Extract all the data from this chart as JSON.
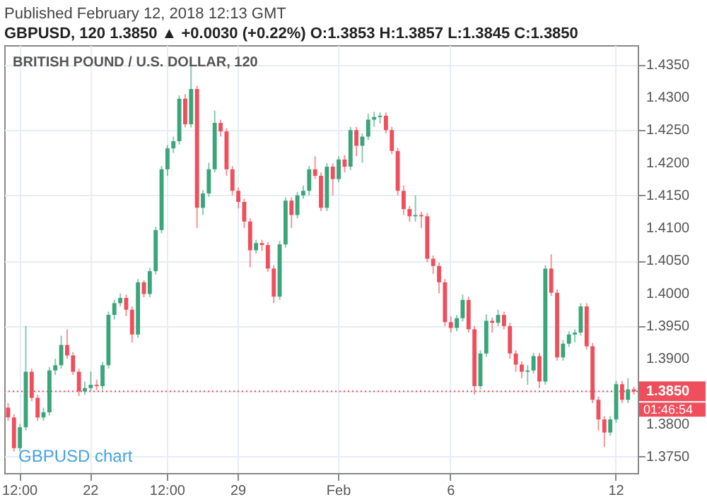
{
  "chart_data": {
    "type": "candlestick",
    "title": "GBPUSD, 120  1.3850 ▲ +0.0030 (+0.22%)  O:1.3853  H:1.3857  L:1.3845  C:1.3850",
    "annotations": [
      "Published February 12, 2018 12:13 GMT",
      "BRITISH POUND / U.S. DOLLAR, 120",
      "GBPUSD chart",
      "01:46:54"
    ],
    "categories": [
      null,
      null,
      "12:00",
      null,
      null,
      null,
      null,
      null,
      null,
      null,
      null,
      null,
      null,
      null,
      "22",
      null,
      null,
      null,
      null,
      null,
      null,
      null,
      null,
      null,
      null,
      null,
      null,
      "12:00",
      null,
      null,
      null,
      null,
      null,
      null,
      null,
      null,
      null,
      null,
      null,
      "29",
      null,
      null,
      null,
      null,
      null,
      null,
      null,
      null,
      null,
      null,
      null,
      null,
      null,
      null,
      null,
      null,
      "Feb",
      null,
      null,
      null,
      null,
      null,
      null,
      null,
      null,
      null,
      null,
      null,
      null,
      null,
      null,
      null,
      null,
      null,
      null,
      "6",
      null,
      null,
      null,
      null,
      null,
      null,
      null,
      null,
      null,
      null,
      null,
      null,
      null,
      null,
      null,
      null,
      null,
      null,
      null,
      null,
      null,
      null,
      null,
      null,
      null,
      null,
      null,
      "12",
      null,
      null,
      null
    ],
    "ohlc": [
      [
        1.3825,
        1.3832,
        1.3805,
        1.381
      ],
      [
        1.381,
        1.3815,
        1.3758,
        1.3763
      ],
      [
        1.3763,
        1.38,
        1.3758,
        1.3795
      ],
      [
        1.3795,
        1.395,
        1.379,
        1.388
      ],
      [
        1.388,
        1.3885,
        1.3835,
        1.384
      ],
      [
        1.384,
        1.3845,
        1.3805,
        1.381
      ],
      [
        1.381,
        1.3825,
        1.3805,
        1.3818
      ],
      [
        1.3818,
        1.3887,
        1.3813,
        1.3882
      ],
      [
        1.3882,
        1.39,
        1.3875,
        1.389
      ],
      [
        1.389,
        1.3935,
        1.3885,
        1.3921
      ],
      [
        1.3921,
        1.3945,
        1.39,
        1.3905
      ],
      [
        1.3905,
        1.391,
        1.3875,
        1.388
      ],
      [
        1.388,
        1.3885,
        1.3843,
        1.385
      ],
      [
        1.385,
        1.3865,
        1.3845,
        1.3855
      ],
      [
        1.3855,
        1.388,
        1.385,
        1.386
      ],
      [
        1.386,
        1.3868,
        1.3852,
        1.3858
      ],
      [
        1.3858,
        1.3895,
        1.3853,
        1.389
      ],
      [
        1.389,
        1.3972,
        1.3885,
        1.3967
      ],
      [
        1.3967,
        1.399,
        1.396,
        1.3985
      ],
      [
        1.3985,
        1.4,
        1.398,
        1.3993
      ],
      [
        1.3993,
        1.3998,
        1.3965,
        1.3975
      ],
      [
        1.3975,
        1.398,
        1.3925,
        1.3937
      ],
      [
        1.3937,
        1.4022,
        1.3932,
        1.4017
      ],
      [
        1.4017,
        1.402,
        1.3994,
        1.3999
      ],
      [
        1.3999,
        1.4039,
        1.3994,
        1.4034
      ],
      [
        1.4034,
        1.4102,
        1.4029,
        1.4097
      ],
      [
        1.4097,
        1.4195,
        1.4092,
        1.419
      ],
      [
        1.419,
        1.4227,
        1.418,
        1.4222
      ],
      [
        1.4222,
        1.424,
        1.4215,
        1.4233
      ],
      [
        1.4233,
        1.4303,
        1.4228,
        1.4298
      ],
      [
        1.4298,
        1.4305,
        1.4254,
        1.4259
      ],
      [
        1.4259,
        1.4348,
        1.4254,
        1.4313
      ],
      [
        1.4313,
        1.4318,
        1.41,
        1.4131
      ],
      [
        1.4131,
        1.4158,
        1.412,
        1.4153
      ],
      [
        1.4153,
        1.42,
        1.4148,
        1.419
      ],
      [
        1.419,
        1.428,
        1.4185,
        1.4261
      ],
      [
        1.4261,
        1.4266,
        1.424,
        1.4248
      ],
      [
        1.4248,
        1.4253,
        1.418,
        1.419
      ],
      [
        1.419,
        1.4195,
        1.415,
        1.4157
      ],
      [
        1.4157,
        1.4162,
        1.413,
        1.414
      ],
      [
        1.414,
        1.4145,
        1.41,
        1.411
      ],
      [
        1.411,
        1.4115,
        1.404,
        1.4066
      ],
      [
        1.4066,
        1.4082,
        1.4061,
        1.4077
      ],
      [
        1.4077,
        1.4082,
        1.4065,
        1.4074
      ],
      [
        1.4074,
        1.4079,
        1.4033,
        1.4038
      ],
      [
        1.4038,
        1.4043,
        1.3985,
        1.3995
      ],
      [
        1.3995,
        1.408,
        1.399,
        1.4075
      ],
      [
        1.4075,
        1.4147,
        1.407,
        1.4142
      ],
      [
        1.4142,
        1.4147,
        1.41,
        1.412
      ],
      [
        1.412,
        1.4155,
        1.4115,
        1.415
      ],
      [
        1.415,
        1.4165,
        1.4145,
        1.4157
      ],
      [
        1.4157,
        1.4195,
        1.415,
        1.419
      ],
      [
        1.419,
        1.421,
        1.4175,
        1.418
      ],
      [
        1.418,
        1.4185,
        1.4126,
        1.4131
      ],
      [
        1.4131,
        1.4199,
        1.4126,
        1.4194
      ],
      [
        1.4194,
        1.4199,
        1.415,
        1.4175
      ],
      [
        1.4175,
        1.421,
        1.417,
        1.4205
      ],
      [
        1.4205,
        1.4212,
        1.4185,
        1.4194
      ],
      [
        1.4194,
        1.4255,
        1.4189,
        1.425
      ],
      [
        1.425,
        1.4255,
        1.421,
        1.4226
      ],
      [
        1.4226,
        1.4245,
        1.42,
        1.424
      ],
      [
        1.424,
        1.4275,
        1.4235,
        1.4266
      ],
      [
        1.4266,
        1.4278,
        1.4255,
        1.427
      ],
      [
        1.427,
        1.4277,
        1.426,
        1.4272
      ],
      [
        1.4272,
        1.4277,
        1.4245,
        1.425
      ],
      [
        1.425,
        1.4255,
        1.4213,
        1.4218
      ],
      [
        1.4218,
        1.4223,
        1.415,
        1.4157
      ],
      [
        1.4157,
        1.4165,
        1.412,
        1.4129
      ],
      [
        1.4129,
        1.4134,
        1.411,
        1.4118
      ],
      [
        1.4118,
        1.415,
        1.411,
        1.412
      ],
      [
        1.412,
        1.4125,
        1.41,
        1.4118
      ],
      [
        1.4118,
        1.4123,
        1.4048,
        1.4053
      ],
      [
        1.4053,
        1.4058,
        1.403,
        1.4042
      ],
      [
        1.4042,
        1.4047,
        1.4,
        1.4017
      ],
      [
        1.4017,
        1.4022,
        1.395,
        1.3956
      ],
      [
        1.3956,
        1.3965,
        1.394,
        1.3947
      ],
      [
        1.3947,
        1.3967,
        1.3942,
        1.3962
      ],
      [
        1.3962,
        1.3998,
        1.3957,
        1.399
      ],
      [
        1.399,
        1.3995,
        1.394,
        1.3945
      ],
      [
        1.3945,
        1.395,
        1.3845,
        1.3858
      ],
      [
        1.3858,
        1.3913,
        1.3853,
        1.3908
      ],
      [
        1.3908,
        1.3968,
        1.3903,
        1.3958
      ],
      [
        1.3958,
        1.3963,
        1.394,
        1.3955
      ],
      [
        1.3955,
        1.3975,
        1.395,
        1.3967
      ],
      [
        1.3967,
        1.3972,
        1.3945,
        1.395
      ],
      [
        1.395,
        1.3955,
        1.39,
        1.3908
      ],
      [
        1.3908,
        1.3913,
        1.388,
        1.3891
      ],
      [
        1.3891,
        1.3896,
        1.387,
        1.388
      ],
      [
        1.388,
        1.389,
        1.386,
        1.3882
      ],
      [
        1.3882,
        1.3909,
        1.3877,
        1.3904
      ],
      [
        1.3904,
        1.3909,
        1.3855,
        1.3865
      ],
      [
        1.3865,
        1.4043,
        1.386,
        1.4038
      ],
      [
        1.4038,
        1.406,
        1.3996,
        1.4001
      ],
      [
        1.4001,
        1.4006,
        1.3897,
        1.3902
      ],
      [
        1.3902,
        1.3928,
        1.3897,
        1.3923
      ],
      [
        1.3923,
        1.3942,
        1.3918,
        1.3937
      ],
      [
        1.3937,
        1.3945,
        1.3925,
        1.394
      ],
      [
        1.394,
        1.3985,
        1.3935,
        1.398
      ],
      [
        1.398,
        1.3985,
        1.3914,
        1.3919
      ],
      [
        1.3919,
        1.3924,
        1.3832,
        1.3837
      ],
      [
        1.3837,
        1.3842,
        1.379,
        1.3807
      ],
      [
        1.3807,
        1.3812,
        1.3765,
        1.3787
      ],
      [
        1.3787,
        1.3812,
        1.3782,
        1.3807
      ],
      [
        1.3807,
        1.3866,
        1.3802,
        1.3861
      ],
      [
        1.3861,
        1.3866,
        1.3832,
        1.3837
      ],
      [
        1.3837,
        1.387,
        1.3832,
        1.3853
      ],
      [
        1.3853,
        1.3857,
        1.3845,
        1.385
      ]
    ],
    "colors": [
      "#ef4f5c",
      "#ef4f5c",
      "#3aa57a",
      "#3aa57a",
      "#ef4f5c",
      "#ef4f5c",
      "#3aa57a",
      "#3aa57a",
      "#3aa57a",
      "#3aa57a",
      "#ef4f5c",
      "#ef4f5c",
      "#ef4f5c",
      "#3aa57a",
      "#3aa57a",
      "#ef4f5c",
      "#3aa57a",
      "#3aa57a",
      "#3aa57a",
      "#3aa57a",
      "#ef4f5c",
      "#ef4f5c",
      "#3aa57a",
      "#ef4f5c",
      "#3aa57a",
      "#3aa57a",
      "#3aa57a",
      "#3aa57a",
      "#3aa57a",
      "#3aa57a",
      "#ef4f5c",
      "#3aa57a",
      "#ef4f5c",
      "#3aa57a",
      "#3aa57a",
      "#3aa57a",
      "#ef4f5c",
      "#ef4f5c",
      "#ef4f5c",
      "#ef4f5c",
      "#ef4f5c",
      "#ef4f5c",
      "#3aa57a",
      "#ef4f5c",
      "#ef4f5c",
      "#ef4f5c",
      "#3aa57a",
      "#3aa57a",
      "#ef4f5c",
      "#3aa57a",
      "#3aa57a",
      "#3aa57a",
      "#ef4f5c",
      "#ef4f5c",
      "#3aa57a",
      "#ef4f5c",
      "#3aa57a",
      "#ef4f5c",
      "#3aa57a",
      "#ef4f5c",
      "#3aa57a",
      "#3aa57a",
      "#3aa57a",
      "#3aa57a",
      "#ef4f5c",
      "#ef4f5c",
      "#ef4f5c",
      "#ef4f5c",
      "#ef4f5c",
      "#3aa57a",
      "#ef4f5c",
      "#ef4f5c",
      "#ef4f5c",
      "#ef4f5c",
      "#ef4f5c",
      "#ef4f5c",
      "#3aa57a",
      "#3aa57a",
      "#ef4f5c",
      "#ef4f5c",
      "#3aa57a",
      "#3aa57a",
      "#ef4f5c",
      "#3aa57a",
      "#ef4f5c",
      "#ef4f5c",
      "#ef4f5c",
      "#ef4f5c",
      "#3aa57a",
      "#3aa57a",
      "#ef4f5c",
      "#3aa57a",
      "#ef4f5c",
      "#ef4f5c",
      "#3aa57a",
      "#3aa57a",
      "#3aa57a",
      "#3aa57a",
      "#ef4f5c",
      "#ef4f5c",
      "#ef4f5c",
      "#ef4f5c",
      "#3aa57a",
      "#3aa57a",
      "#ef4f5c",
      "#3aa57a",
      "#ef4f5c"
    ],
    "ylim": [
      1.3725,
      1.438
    ],
    "yticks": [
      {
        "value": 1.375,
        "label": "1.3750"
      },
      {
        "value": 1.38,
        "label": "1.3800"
      },
      {
        "value": 1.385,
        "label": null
      },
      {
        "value": 1.39,
        "label": "1.3900"
      },
      {
        "value": 1.395,
        "label": "1.3950"
      },
      {
        "value": 1.4,
        "label": "1.4000"
      },
      {
        "value": 1.405,
        "label": "1.4050"
      },
      {
        "value": 1.41,
        "label": "1.4100"
      },
      {
        "value": 1.415,
        "label": "1.4150"
      },
      {
        "value": 1.42,
        "label": "1.4200"
      },
      {
        "value": 1.425,
        "label": "1.4250"
      },
      {
        "value": 1.43,
        "label": "1.4300"
      },
      {
        "value": 1.435,
        "label": "1.4350"
      }
    ],
    "ref_lines": [
      {
        "axis": "y",
        "value": 1.385,
        "label": "1.3850",
        "color": "#ef4f5c",
        "line_style": "dotted"
      }
    ],
    "grid": true
  }
}
